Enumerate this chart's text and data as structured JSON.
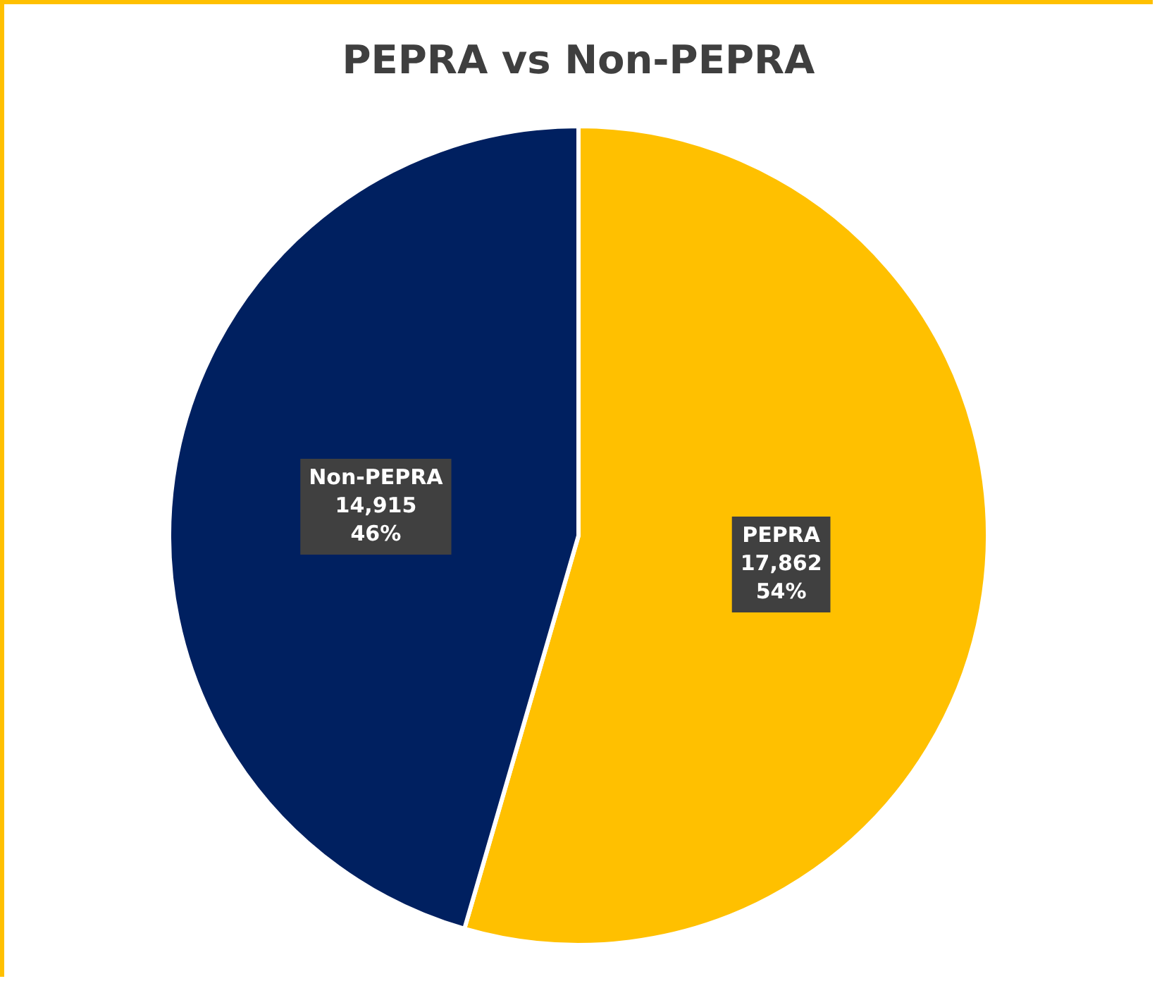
{
  "chart_data": {
    "type": "pie",
    "title": "PEPRA vs Non-PEPRA",
    "categories": [
      "PEPRA",
      "Non-PEPRA"
    ],
    "values": [
      17862,
      14915
    ],
    "colors": [
      "#ffc000",
      "#002060"
    ],
    "value_labels": [
      "17,862\n54%",
      "14,915\n46%"
    ],
    "legend": false
  }
}
